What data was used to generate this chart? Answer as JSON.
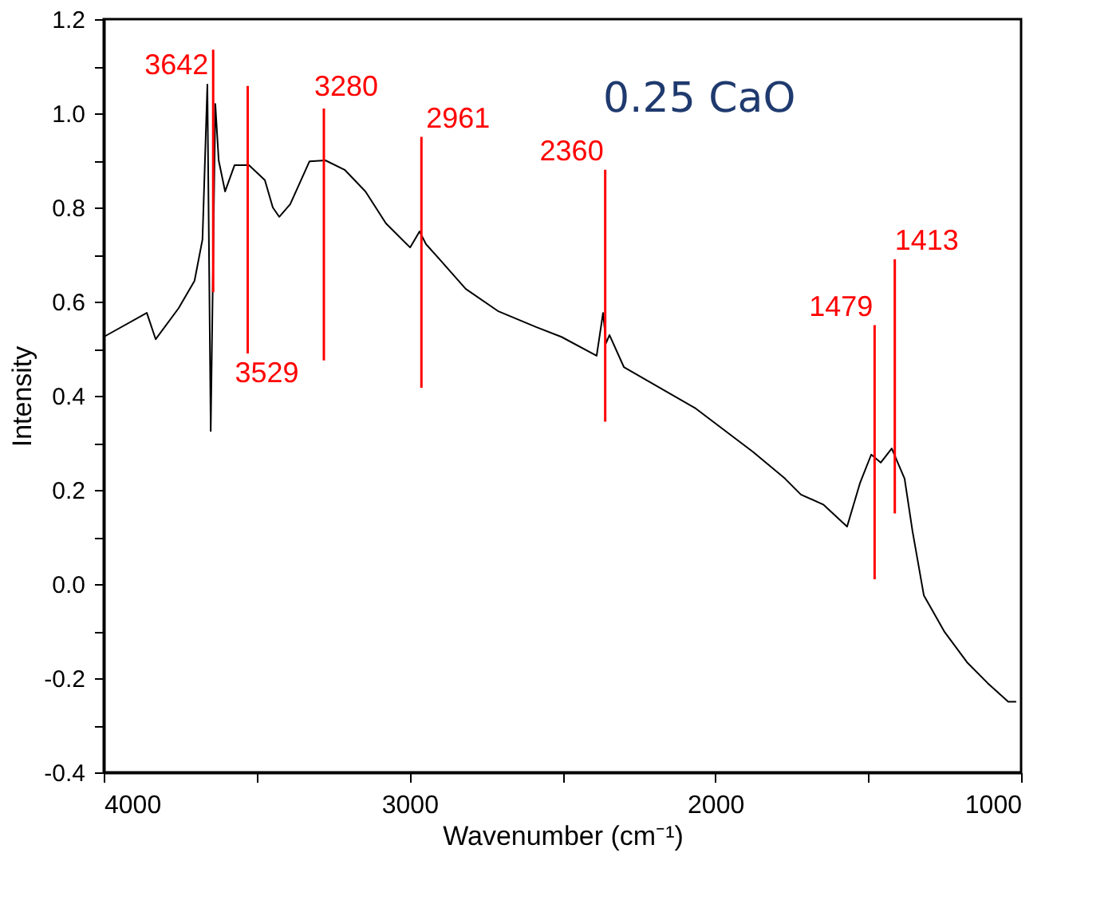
{
  "chart_data": {
    "type": "line",
    "xlabel": "Wavenumber (cm⁻¹)",
    "ylabel": "Intensity",
    "xlim": [
      4000,
      1000
    ],
    "ylim": [
      -0.4,
      1.2
    ],
    "xticks": [
      4000,
      {
        "value": 3500,
        "label": null
      },
      3000,
      {
        "value": 2500,
        "label": null
      },
      2000,
      {
        "value": 1500,
        "label": null
      },
      1000
    ],
    "yticks": [
      -0.4,
      {
        "value": -0.3,
        "label": null
      },
      -0.2,
      {
        "value": -0.1,
        "label": null
      },
      {
        "value": 0,
        "label": "0.0"
      },
      {
        "value": 0.1,
        "label": null
      },
      0.2,
      {
        "value": 0.3,
        "label": null
      },
      0.4,
      {
        "value": 0.5,
        "label": null
      },
      0.6,
      {
        "value": 0.7,
        "label": null
      },
      0.8,
      {
        "value": 0.9,
        "label": null
      },
      {
        "value": 1.0,
        "label": "1.0"
      },
      {
        "value": 1.1,
        "label": null
      },
      1.2
    ],
    "grid": false,
    "marker": "none",
    "line_style": "solid",
    "series": [
      {
        "color": "#000000",
        "x": [
          4000,
          3859,
          3830,
          3755,
          3703,
          3677,
          3661,
          3650,
          3635,
          3624,
          3603,
          3572,
          3525,
          3473,
          3447,
          3426,
          3390,
          3327,
          3275,
          3212,
          3144,
          3077,
          2998,
          2967,
          2946,
          2899,
          2816,
          2711,
          2586,
          2503,
          2388,
          2367,
          2357,
          2346,
          2299,
          2064,
          1877,
          1772,
          1720,
          1647,
          1569,
          1527,
          1490,
          1459,
          1423,
          1381,
          1355,
          1318,
          1250,
          1177,
          1110,
          1042,
          1016
        ],
        "values": [
          0.525,
          0.576,
          0.52,
          0.586,
          0.644,
          0.732,
          1.061,
          0.325,
          1.02,
          0.9,
          0.834,
          0.89,
          0.89,
          0.858,
          0.8,
          0.78,
          0.807,
          0.898,
          0.9,
          0.88,
          0.834,
          0.766,
          0.715,
          0.749,
          0.722,
          0.688,
          0.627,
          0.58,
          0.546,
          0.525,
          0.485,
          0.576,
          0.512,
          0.529,
          0.461,
          0.373,
          0.281,
          0.224,
          0.19,
          0.169,
          0.122,
          0.214,
          0.275,
          0.258,
          0.288,
          0.224,
          0.112,
          -0.024,
          -0.102,
          -0.166,
          -0.21,
          -0.25,
          -0.25
        ]
      },
      {
        "color": "#ff0000",
        "x": [
          3642,
          3642
        ],
        "values": [
          1.135,
          0.62
        ]
      },
      {
        "color": "#ff0000",
        "x": [
          3529,
          3529
        ],
        "values": [
          1.058,
          0.49
        ]
      },
      {
        "color": "#ff0000",
        "x": [
          3280,
          3280
        ],
        "values": [
          1.01,
          0.475
        ]
      },
      {
        "color": "#ff0000",
        "x": [
          2961,
          2961
        ],
        "values": [
          0.95,
          0.417
        ]
      },
      {
        "color": "#ff0000",
        "x": [
          2360,
          2360
        ],
        "values": [
          0.88,
          0.345
        ]
      },
      {
        "color": "#ff0000",
        "x": [
          1479,
          1479
        ],
        "values": [
          0.55,
          0.01
        ]
      },
      {
        "color": "#ff0000",
        "x": [
          1413,
          1413
        ],
        "values": [
          0.69,
          0.15
        ]
      }
    ],
    "annotations": [
      {
        "text": "3642",
        "x": 3642,
        "y": 1.1
      },
      {
        "text": "3529",
        "x": 3529,
        "y": 0.49
      },
      {
        "text": "3280",
        "x": 3280,
        "y": 1.01
      },
      {
        "text": "2961",
        "x": 2961,
        "y": 0.95
      },
      {
        "text": "2360",
        "x": 2360,
        "y": 0.88
      },
      {
        "text": "1479",
        "x": 1479,
        "y": 0.55
      },
      {
        "text": "1413",
        "x": 1413,
        "y": 0.69
      },
      "0.25 CaO"
    ]
  }
}
